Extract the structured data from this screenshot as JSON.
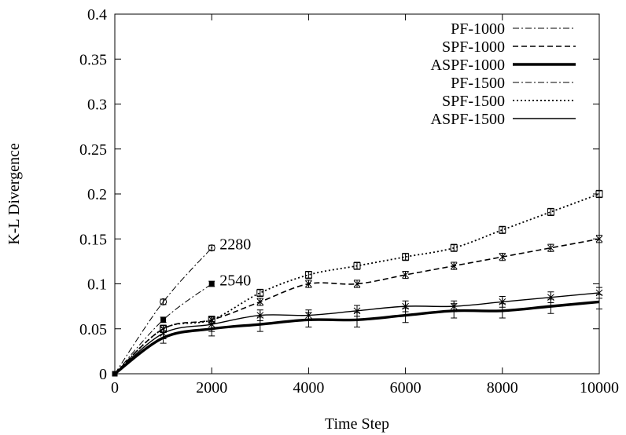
{
  "chart_data": {
    "type": "line",
    "xlabel": "Time Step",
    "ylabel": "K-L Divergence",
    "xlim": [
      0,
      10000
    ],
    "ylim": [
      0,
      0.4
    ],
    "xticks": [
      0,
      2000,
      4000,
      6000,
      8000,
      10000
    ],
    "xtick_labels": [
      "0",
      "2000",
      "4000",
      "6000",
      "8000",
      "10000"
    ],
    "yticks": [
      0,
      0.05,
      0.1,
      0.15,
      0.2,
      0.25,
      0.3,
      0.35,
      0.4
    ],
    "ytick_labels": [
      "0",
      "0.05",
      "0.1",
      "0.15",
      "0.2",
      "0.25",
      "0.3",
      "0.35",
      "0.4"
    ],
    "grid": false,
    "legend_position": "top-right",
    "series": [
      {
        "name": "PF-1000",
        "style": "dashdot",
        "width": 1,
        "marker": "filled-square",
        "x": [
          0,
          1000,
          2000
        ],
        "y": [
          0,
          0.06,
          0.1
        ],
        "err": [
          0,
          0.003,
          0.003
        ]
      },
      {
        "name": "SPF-1000",
        "style": "dashed",
        "width": 1.6,
        "marker": "x-star",
        "x": [
          0,
          1000,
          2000,
          3000,
          4000,
          5000,
          6000,
          7000,
          8000,
          9000,
          10000
        ],
        "y": [
          0,
          0.05,
          0.06,
          0.08,
          0.1,
          0.1,
          0.11,
          0.12,
          0.13,
          0.14,
          0.15
        ],
        "err": [
          0,
          0.004,
          0.004,
          0.004,
          0.004,
          0.004,
          0.004,
          0.004,
          0.004,
          0.004,
          0.004
        ]
      },
      {
        "name": "ASPF-1000",
        "style": "solid",
        "width": 3.4,
        "marker": "none",
        "x": [
          0,
          1000,
          2000,
          3000,
          4000,
          5000,
          6000,
          7000,
          8000,
          9000,
          10000
        ],
        "y": [
          0,
          0.04,
          0.05,
          0.055,
          0.06,
          0.06,
          0.065,
          0.07,
          0.07,
          0.075,
          0.08
        ],
        "err": [
          0,
          0.006,
          0.008,
          0.008,
          0.008,
          0.008,
          0.008,
          0.008,
          0.008,
          0.008,
          0.008
        ]
      },
      {
        "name": "PF-1500",
        "style": "dashdot",
        "width": 1,
        "marker": "circle-dot",
        "x": [
          0,
          1000,
          2000
        ],
        "y": [
          0,
          0.08,
          0.14
        ],
        "err": [
          0,
          0.003,
          0.003
        ]
      },
      {
        "name": "SPF-1500",
        "style": "dotted",
        "width": 1.8,
        "marker": "open-square",
        "x": [
          0,
          1000,
          2000,
          3000,
          4000,
          5000,
          6000,
          7000,
          8000,
          9000,
          10000
        ],
        "y": [
          0,
          0.05,
          0.06,
          0.09,
          0.11,
          0.12,
          0.13,
          0.14,
          0.16,
          0.18,
          0.2
        ],
        "err": [
          0,
          0.004,
          0.004,
          0.004,
          0.004,
          0.004,
          0.004,
          0.004,
          0.004,
          0.004,
          0.004
        ]
      },
      {
        "name": "ASPF-1500",
        "style": "solid",
        "width": 1.4,
        "marker": "x-star",
        "x": [
          0,
          1000,
          2000,
          3000,
          4000,
          5000,
          6000,
          7000,
          8000,
          9000,
          10000
        ],
        "y": [
          0,
          0.045,
          0.055,
          0.065,
          0.065,
          0.07,
          0.075,
          0.075,
          0.08,
          0.085,
          0.09
        ],
        "err": [
          0,
          0.006,
          0.008,
          0.006,
          0.006,
          0.006,
          0.006,
          0.006,
          0.006,
          0.006,
          0.006
        ]
      }
    ],
    "annotations": [
      {
        "text": "2280",
        "x": 2000,
        "y": 0.14
      },
      {
        "text": "2540",
        "x": 2000,
        "y": 0.1
      }
    ]
  }
}
